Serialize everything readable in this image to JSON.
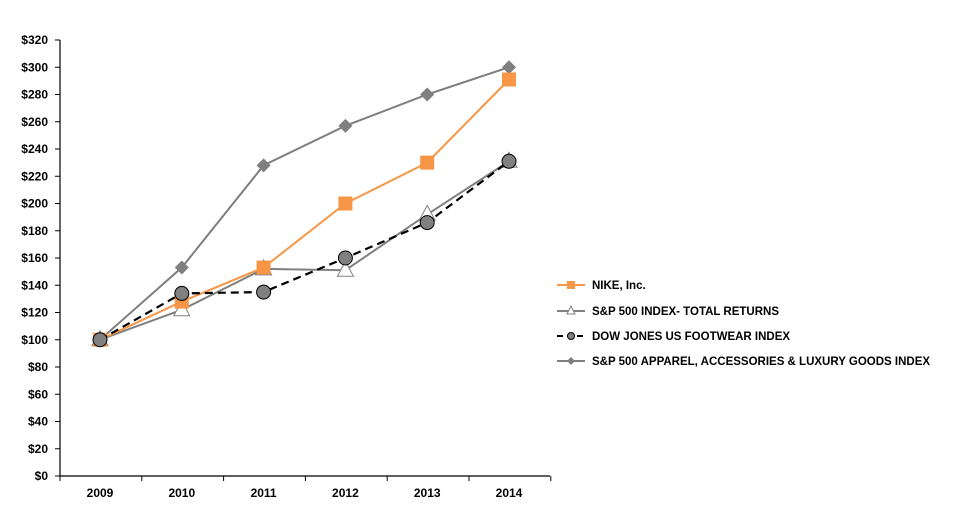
{
  "chart_data": {
    "type": "line",
    "title": "",
    "xlabel": "",
    "ylabel": "",
    "categories": [
      "2009",
      "2010",
      "2011",
      "2012",
      "2013",
      "2014"
    ],
    "ylim": [
      0,
      320
    ],
    "ytick_step": 20,
    "ytick_labels": [
      "$0",
      "$20",
      "$40",
      "$60",
      "$80",
      "$100",
      "$120",
      "$140",
      "$160",
      "$180",
      "$200",
      "$220",
      "$240",
      "$260",
      "$280",
      "$300",
      "$320"
    ],
    "grid": false,
    "legend_position": "right",
    "series": [
      {
        "name": "NIKE, Inc.",
        "values": [
          100,
          128,
          153,
          200,
          230,
          291
        ],
        "color": "#F79646",
        "marker": "square",
        "dash": false
      },
      {
        "name": "S&P 500 INDEX- TOTAL RETURNS",
        "values": [
          100,
          122,
          152,
          151,
          192,
          231
        ],
        "color": "#808080",
        "marker": "triangle",
        "dash": false
      },
      {
        "name": "DOW JONES US FOOTWEAR INDEX",
        "values": [
          100,
          134,
          135,
          160,
          186,
          231
        ],
        "color": "#000000",
        "marker": "circle",
        "dash": true
      },
      {
        "name": "S&P 500 APPAREL, ACCESSORIES & LUXURY GOODS INDEX",
        "values": [
          100,
          153,
          228,
          257,
          280,
          300
        ],
        "color": "#7F7F7F",
        "marker": "diamond",
        "dash": false
      }
    ]
  }
}
